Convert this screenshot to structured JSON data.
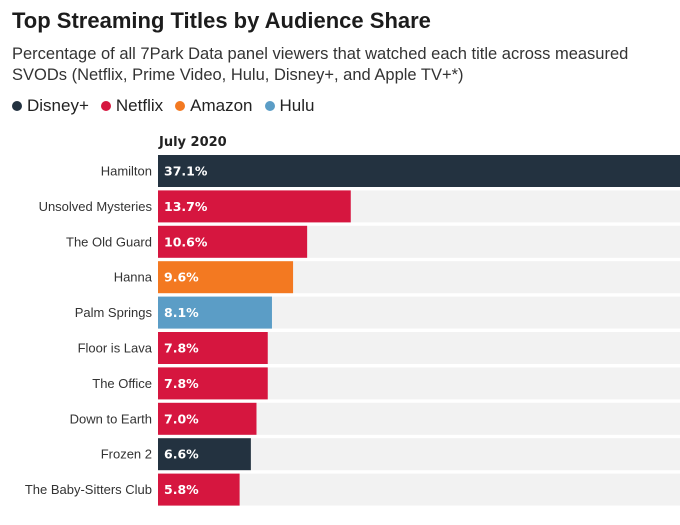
{
  "chart_data": {
    "type": "bar",
    "orientation": "horizontal",
    "title": "Top Streaming Titles by Audience Share",
    "subtitle": "Percentage of all 7Park Data panel viewers that watched each title across measured SVODs (Netflix, Prime Video, Hulu, Disney+, and Apple TV+*)",
    "column_header": "July 2020",
    "legend": [
      {
        "name": "Disney+",
        "color": "#233240"
      },
      {
        "name": "Netflix",
        "color": "#d6163f"
      },
      {
        "name": "Amazon",
        "color": "#f37921"
      },
      {
        "name": "Hulu",
        "color": "#5b9dc6"
      }
    ],
    "categories": [
      "Hamilton",
      "Unsolved Mysteries",
      "The Old Guard",
      "Hanna",
      "Palm Springs",
      "Floor is Lava",
      "The Office",
      "Down to Earth",
      "Frozen 2",
      "The Baby-Sitters Club"
    ],
    "values": [
      37.1,
      13.7,
      10.6,
      9.6,
      8.1,
      7.8,
      7.8,
      7.0,
      6.6,
      5.8
    ],
    "value_labels": [
      "37.1%",
      "13.7%",
      "10.6%",
      "9.6%",
      "8.1%",
      "7.8%",
      "7.8%",
      "7.0%",
      "6.6%",
      "5.8%"
    ],
    "services": [
      "Disney+",
      "Netflix",
      "Netflix",
      "Amazon",
      "Hulu",
      "Netflix",
      "Netflix",
      "Netflix",
      "Disney+",
      "Netflix"
    ],
    "xlim": [
      0,
      37.1
    ],
    "track_color": "#f2f2f2"
  }
}
